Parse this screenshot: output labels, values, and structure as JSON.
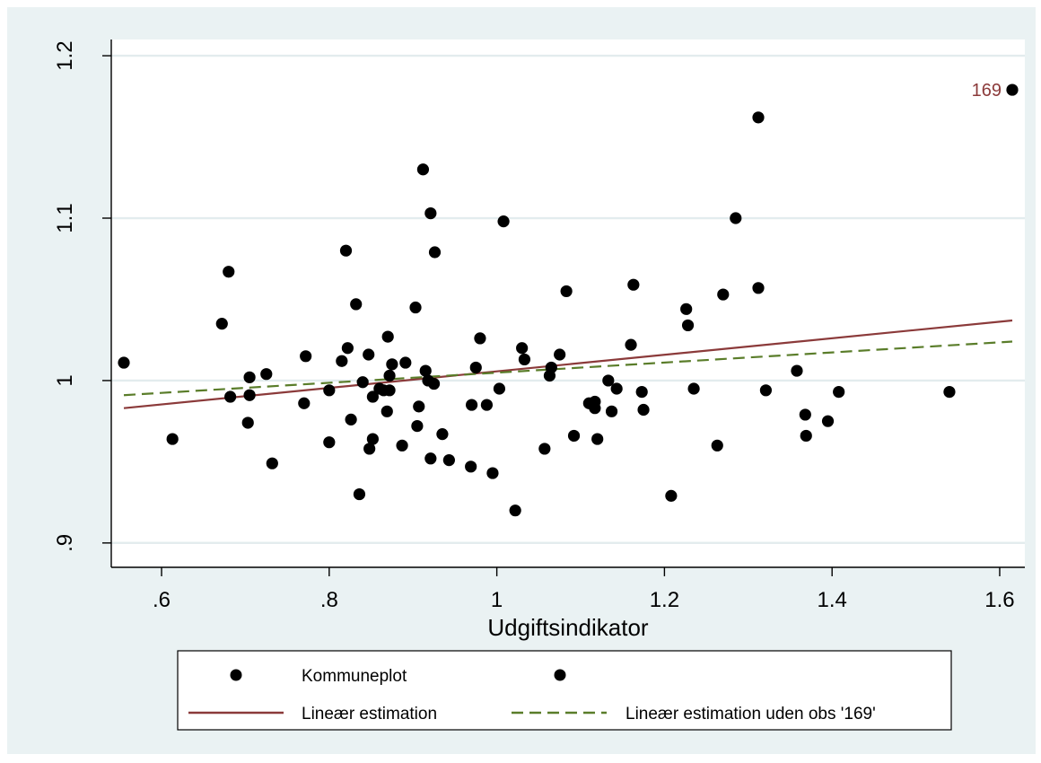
{
  "chart_data": {
    "type": "scatter",
    "xlabel": "Udgiftsindikator",
    "ylabel": "",
    "xlim": [
      0.54,
      1.63
    ],
    "ylim": [
      0.885,
      1.21
    ],
    "x_ticks": [
      0.6,
      0.8,
      1.0,
      1.2,
      1.4,
      1.6
    ],
    "x_tick_labels": [
      ".6",
      ".8",
      "1",
      "1.2",
      "1.4",
      "1.6"
    ],
    "y_ticks": [
      0.9,
      1.0,
      1.1,
      1.2
    ],
    "y_tick_labels": [
      ".9",
      "1",
      "1.1",
      "1.2"
    ],
    "grid": "horizontal",
    "legend_position": "bottom",
    "colors": {
      "background": "#eaf2f3",
      "plot": "#ffffff",
      "points": "#000000",
      "fit": "#8b3a3a",
      "fit_excl": "#5a7d2a",
      "grid": "#e3ecee"
    },
    "series": [
      {
        "name": "Kommuneplot",
        "kind": "scatter",
        "points": [
          [
            0.555,
            1.011
          ],
          [
            0.613,
            0.964
          ],
          [
            0.672,
            1.035
          ],
          [
            0.68,
            1.067
          ],
          [
            0.682,
            0.99
          ],
          [
            0.703,
            0.974
          ],
          [
            0.705,
            1.002
          ],
          [
            0.705,
            0.991
          ],
          [
            0.725,
            1.004
          ],
          [
            0.732,
            0.949
          ],
          [
            0.77,
            0.986
          ],
          [
            0.772,
            1.015
          ],
          [
            0.8,
            0.962
          ],
          [
            0.8,
            0.994
          ],
          [
            0.815,
            1.012
          ],
          [
            0.82,
            1.08
          ],
          [
            0.822,
            1.02
          ],
          [
            0.826,
            0.976
          ],
          [
            0.832,
            1.047
          ],
          [
            0.836,
            0.93
          ],
          [
            0.84,
            0.999
          ],
          [
            0.847,
            1.016
          ],
          [
            0.848,
            0.958
          ],
          [
            0.852,
            0.99
          ],
          [
            0.852,
            0.964
          ],
          [
            0.86,
            0.995
          ],
          [
            0.865,
            0.994
          ],
          [
            0.869,
            0.981
          ],
          [
            0.87,
            1.027
          ],
          [
            0.872,
            0.994
          ],
          [
            0.872,
            1.003
          ],
          [
            0.875,
            1.01
          ],
          [
            0.887,
            0.96
          ],
          [
            0.891,
            1.011
          ],
          [
            0.903,
            1.045
          ],
          [
            0.905,
            0.972
          ],
          [
            0.907,
            0.984
          ],
          [
            0.912,
            1.13
          ],
          [
            0.915,
            1.006
          ],
          [
            0.918,
            1.0
          ],
          [
            0.921,
            0.952
          ],
          [
            0.921,
            1.103
          ],
          [
            0.925,
            0.998
          ],
          [
            0.926,
            1.079
          ],
          [
            0.935,
            0.967
          ],
          [
            0.943,
            0.951
          ],
          [
            0.969,
            0.947
          ],
          [
            0.97,
            0.985
          ],
          [
            0.975,
            1.008
          ],
          [
            0.98,
            1.026
          ],
          [
            0.988,
            0.985
          ],
          [
            0.995,
            0.943
          ],
          [
            1.003,
            0.995
          ],
          [
            1.008,
            1.098
          ],
          [
            1.022,
            0.92
          ],
          [
            1.03,
            1.02
          ],
          [
            1.033,
            1.013
          ],
          [
            1.057,
            0.958
          ],
          [
            1.063,
            1.003
          ],
          [
            1.065,
            1.008
          ],
          [
            1.075,
            1.016
          ],
          [
            1.083,
            1.055
          ],
          [
            1.092,
            0.966
          ],
          [
            1.11,
            0.986
          ],
          [
            1.117,
            0.987
          ],
          [
            1.117,
            0.983
          ],
          [
            1.12,
            0.964
          ],
          [
            1.133,
            1.0
          ],
          [
            1.137,
            0.981
          ],
          [
            1.143,
            0.995
          ],
          [
            1.16,
            1.022
          ],
          [
            1.163,
            1.059
          ],
          [
            1.173,
            0.993
          ],
          [
            1.175,
            0.982
          ],
          [
            1.208,
            0.929
          ],
          [
            1.226,
            1.044
          ],
          [
            1.228,
            1.034
          ],
          [
            1.235,
            0.995
          ],
          [
            1.263,
            0.96
          ],
          [
            1.27,
            1.053
          ],
          [
            1.285,
            1.1
          ],
          [
            1.312,
            1.057
          ],
          [
            1.312,
            1.162
          ],
          [
            1.321,
            0.994
          ],
          [
            1.358,
            1.006
          ],
          [
            1.368,
            0.979
          ],
          [
            1.369,
            0.966
          ],
          [
            1.395,
            0.975
          ],
          [
            1.408,
            0.993
          ],
          [
            1.54,
            0.993
          ]
        ]
      },
      {
        "name": "",
        "kind": "scatter",
        "points": [
          [
            1.615,
            1.179
          ]
        ],
        "label": "169"
      },
      {
        "name": "Lineær estimation",
        "kind": "line",
        "style": "solid",
        "x": [
          0.555,
          1.615
        ],
        "y": [
          0.983,
          1.037
        ]
      },
      {
        "name": "Lineær estimation uden obs '169'",
        "kind": "line",
        "style": "dashed",
        "x": [
          0.555,
          1.615
        ],
        "y": [
          0.991,
          1.024
        ]
      }
    ]
  }
}
